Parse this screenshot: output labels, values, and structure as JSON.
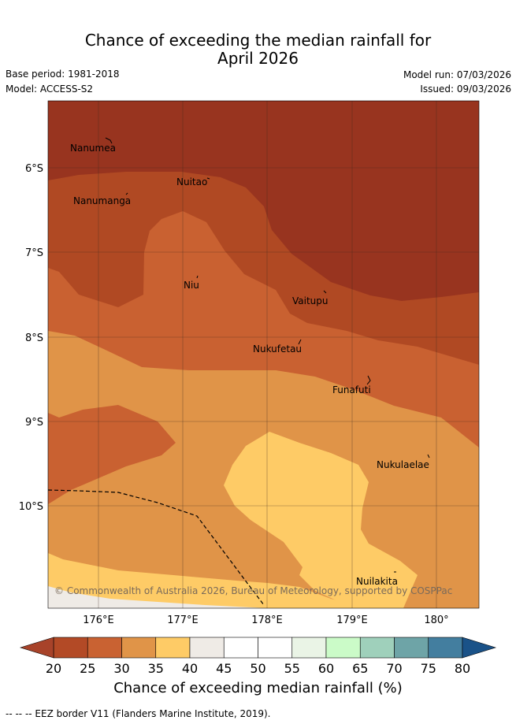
{
  "title": {
    "line1": "Chance of exceeding the median rainfall for",
    "line2": "April 2026"
  },
  "meta": {
    "base_period": "Base period: 1981-2018",
    "model": "Model: ACCESS-S2",
    "model_run": "Model run: 07/03/2026",
    "issued": "Issued: 09/03/2026"
  },
  "map": {
    "lat_labels": [
      "6°S",
      "7°S",
      "8°S",
      "9°S",
      "10°S"
    ],
    "lon_labels": [
      "176°E",
      "177°E",
      "178°E",
      "179°E",
      "180°"
    ],
    "islands": {
      "nanumea": "Nanumea",
      "nuitao": "Nuitao",
      "nanumanga": "Nanumanga",
      "niu": "Niu",
      "vaitupu": "Vaitupu",
      "nukufetau": "Nukufetau",
      "funafuti": "Funafuti",
      "nukulaelae": "Nukulaelae",
      "nuilakita": "Nuilakita"
    },
    "copyright": "© Commonwealth of Australia 2026, Bureau of Meteorology, supported by COSPPac"
  },
  "colorbar": {
    "ticks": [
      "20",
      "25",
      "30",
      "35",
      "40",
      "45",
      "50",
      "55",
      "60",
      "65",
      "70",
      "75",
      "80"
    ],
    "label": "Chance of exceeding median rainfall (%)",
    "colors": {
      "lt20": "#a8432a",
      "b20_25": "#b34a26",
      "b25_30": "#c96232",
      "b30_35": "#e09448",
      "b35_40": "#fecb66",
      "b40_45": "#efebe6",
      "b45_55": "#ffffff",
      "b55_60": "#eaf4e6",
      "b60_65": "#cbfbc8",
      "b65_70": "#9fd0bb",
      "b70_75": "#6ea4a7",
      "b75_80": "#437e9f",
      "gt80": "#1a5288"
    }
  },
  "footnote": "--  --  -- EEZ border V11 (Flanders Marine Institute, 2019)."
}
